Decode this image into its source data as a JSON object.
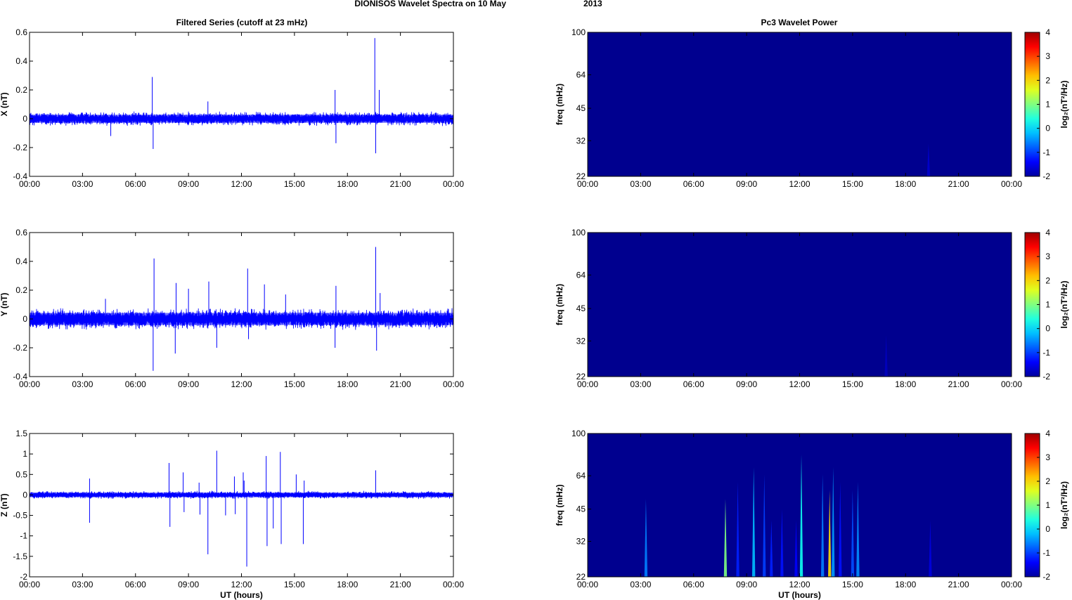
{
  "figure": {
    "title_left": "DIONISOS Wavelet Spectra on 10 May",
    "title_right": "2013",
    "left_title": "Filtered Series (cutoff at 23 mHz)",
    "right_title": "Pc3 Wavelet Power",
    "xlabel": "UT (hours)",
    "time_ticks": [
      "00:00",
      "03:00",
      "06:00",
      "09:00",
      "12:00",
      "15:00",
      "18:00",
      "21:00",
      "00:00"
    ]
  },
  "colors": {
    "trace": "#0000ff",
    "background_power": "#00008f",
    "frame": "#000000"
  },
  "chart_data": [
    {
      "type": "line",
      "title": "Filtered Series (cutoff at 23 mHz)",
      "ylabel": "X (nT)",
      "xlabel": "",
      "xlim": [
        0,
        24
      ],
      "ylim": [
        -0.4,
        0.6
      ],
      "yticks": [
        "-0.4",
        "-0.2",
        "0",
        "0.2",
        "0.4",
        "0.6"
      ],
      "noise_amplitude": 0.04,
      "spikes": [
        [
          6.95,
          0.29
        ],
        [
          7.0,
          -0.21
        ],
        [
          10.1,
          0.12
        ],
        [
          17.3,
          0.2
        ],
        [
          17.35,
          -0.17
        ],
        [
          19.55,
          0.56
        ],
        [
          19.6,
          -0.24
        ],
        [
          19.8,
          0.2
        ],
        [
          4.6,
          -0.12
        ]
      ]
    },
    {
      "type": "line",
      "title": "",
      "ylabel": "Y (nT)",
      "xlabel": "",
      "xlim": [
        0,
        24
      ],
      "ylim": [
        -0.4,
        0.6
      ],
      "yticks": [
        "-0.4",
        "-0.2",
        "0",
        "0.2",
        "0.4",
        "0.6"
      ],
      "noise_amplitude": 0.06,
      "spikes": [
        [
          4.3,
          0.14
        ],
        [
          7.05,
          0.42
        ],
        [
          7.0,
          -0.36
        ],
        [
          8.3,
          0.25
        ],
        [
          8.25,
          -0.24
        ],
        [
          9.0,
          0.21
        ],
        [
          10.15,
          0.26
        ],
        [
          10.6,
          -0.2
        ],
        [
          12.35,
          0.35
        ],
        [
          12.4,
          -0.14
        ],
        [
          13.3,
          0.24
        ],
        [
          14.5,
          0.17
        ],
        [
          17.35,
          0.23
        ],
        [
          17.3,
          -0.2
        ],
        [
          19.6,
          0.5
        ],
        [
          19.65,
          -0.22
        ],
        [
          19.85,
          0.18
        ]
      ]
    },
    {
      "type": "line",
      "title": "",
      "ylabel": "Z (nT)",
      "xlabel": "UT (hours)",
      "xlim": [
        0,
        24
      ],
      "ylim": [
        -2,
        1.5
      ],
      "yticks": [
        "-2",
        "-1.5",
        "-1",
        "-0.5",
        "0",
        "0.5",
        "1",
        "1.5"
      ],
      "noise_amplitude": 0.08,
      "spikes": [
        [
          3.4,
          0.4
        ],
        [
          3.4,
          -0.68
        ],
        [
          7.9,
          0.78
        ],
        [
          7.95,
          -0.78
        ],
        [
          8.7,
          0.55
        ],
        [
          8.75,
          -0.42
        ],
        [
          9.6,
          0.3
        ],
        [
          9.65,
          -0.48
        ],
        [
          10.1,
          -1.45
        ],
        [
          10.6,
          1.08
        ],
        [
          11.1,
          -0.5
        ],
        [
          11.6,
          0.45
        ],
        [
          11.65,
          -0.47
        ],
        [
          12.1,
          0.55
        ],
        [
          12.3,
          -1.75
        ],
        [
          12.15,
          0.35
        ],
        [
          13.4,
          0.95
        ],
        [
          13.45,
          -1.25
        ],
        [
          13.8,
          -0.82
        ],
        [
          14.2,
          1.05
        ],
        [
          14.25,
          -1.2
        ],
        [
          15.1,
          0.5
        ],
        [
          15.5,
          -1.2
        ],
        [
          15.55,
          0.35
        ],
        [
          19.6,
          0.6
        ]
      ]
    },
    {
      "type": "heatmap",
      "title": "Pc3 Wavelet Power",
      "ylabel": "freq (mHz)",
      "xlabel": "",
      "xlim": [
        0,
        24
      ],
      "ylim": [
        22,
        100
      ],
      "yscale": "log",
      "yticks": [
        "100",
        "64",
        "45",
        "32",
        "22"
      ],
      "colorbar": {
        "label": "log₂(nT²/Hz)",
        "range": [
          -2,
          4
        ],
        "ticks": [
          "4",
          "3",
          "2",
          "1",
          "0",
          "-1",
          "-2"
        ]
      },
      "features": [
        [
          19.3,
          31,
          -1.7
        ]
      ]
    },
    {
      "type": "heatmap",
      "title": "",
      "ylabel": "freq (mHz)",
      "xlabel": "",
      "xlim": [
        0,
        24
      ],
      "ylim": [
        22,
        100
      ],
      "yscale": "log",
      "yticks": [
        "100",
        "64",
        "45",
        "32",
        "22"
      ],
      "colorbar": {
        "label": "log₂(nT²/Hz)",
        "range": [
          -2,
          4
        ],
        "ticks": [
          "4",
          "3",
          "2",
          "1",
          "0",
          "-1",
          "-2"
        ]
      },
      "features": [
        [
          16.9,
          34,
          -1.8
        ]
      ]
    },
    {
      "type": "heatmap",
      "title": "",
      "ylabel": "freq (mHz)",
      "xlabel": "UT (hours)",
      "xlim": [
        0,
        24
      ],
      "ylim": [
        22,
        100
      ],
      "yscale": "log",
      "yticks": [
        "100",
        "64",
        "45",
        "32",
        "22"
      ],
      "colorbar": {
        "label": "log₂(nT²/Hz)",
        "range": [
          -2,
          4
        ],
        "ticks": [
          "4",
          "3",
          "2",
          "1",
          "0",
          "-1",
          "-2"
        ]
      },
      "features": [
        [
          3.3,
          50,
          -0.6
        ],
        [
          7.8,
          50,
          1.0
        ],
        [
          8.5,
          60,
          -1.2
        ],
        [
          9.4,
          70,
          -0.2
        ],
        [
          10.0,
          65,
          -1.0
        ],
        [
          10.4,
          40,
          -1.2
        ],
        [
          11.0,
          45,
          -1.3
        ],
        [
          11.8,
          40,
          -1.4
        ],
        [
          12.1,
          80,
          0.3
        ],
        [
          13.3,
          65,
          -0.6
        ],
        [
          13.7,
          55,
          2.0
        ],
        [
          13.9,
          70,
          -0.4
        ],
        [
          14.3,
          60,
          -1.3
        ],
        [
          15.0,
          55,
          -0.9
        ],
        [
          15.3,
          60,
          -0.5
        ],
        [
          19.4,
          40,
          -1.6
        ]
      ]
    }
  ]
}
